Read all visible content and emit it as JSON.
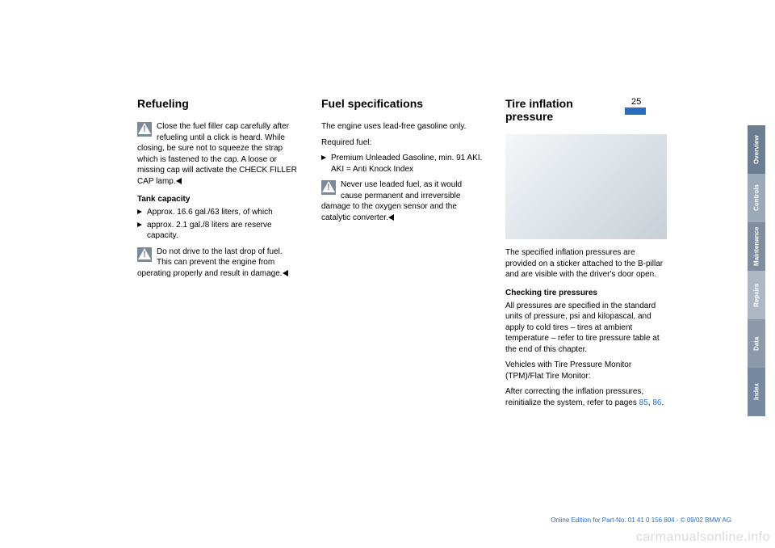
{
  "page_number": "25",
  "col1": {
    "title": "Refueling",
    "warn1": "Close the fuel filler cap carefully after refueling until a click is heard. While closing, be sure not to squeeze the strap which is fastened to the cap. A loose or missing cap will activate the CHECK FILLER CAP lamp.",
    "h3_1": "Tank capacity",
    "li1": "Approx. 16.6 gal./63 liters, of which",
    "li2": "approx. 2.1 gal./8 liters are reserve capacity.",
    "warn2": "Do not drive to the last drop of fuel. This can prevent the engine from operating properly and result in damage."
  },
  "col2": {
    "title": "Fuel specifications",
    "p1": "The engine uses lead-free gasoline only.",
    "p2": "Required fuel:",
    "li1": "Premium Unleaded Gasoline, min. 91 AKI. AKI = Anti Knock Index",
    "warn1": "Never use leaded fuel, as it would cause permanent and irreversible damage to the oxygen sensor and the catalytic converter."
  },
  "col3": {
    "title": "Tire inflation pressure",
    "p1": "The specified inflation pressures are provided on a sticker attached to the B-pillar and are visible with the driver's door open.",
    "h3_1": "Checking tire pressures",
    "p2": "All pressures are specified in the standard units of pressure, psi and kilopascal, and apply to cold tires – tires at ambient temperature – refer to tire pressure table at the end of this chapter.",
    "p3": "Vehicles with Tire Pressure Monitor (TPM)/Flat Tire Monitor:",
    "p4_a": "After correcting the inflation pressures, reinitialize the system, refer to pages ",
    "ref1": "85",
    "ref_sep": ", ",
    "ref2": "86",
    "p4_b": "."
  },
  "tabs": [
    {
      "label": "Overview",
      "color": "#6b7d90"
    },
    {
      "label": "Controls",
      "color": "#9ca9b8"
    },
    {
      "label": "Maintenance",
      "color": "#7e8da0"
    },
    {
      "label": "Repairs",
      "color": "#aeb8c5"
    },
    {
      "label": "Data",
      "color": "#8b99ab"
    },
    {
      "label": "Index",
      "color": "#7689a0"
    }
  ],
  "footer": "Online Edition for Part-No. 01 41 0 156 804 - © 09/02 BMW AG",
  "watermark": "carmanualsonline.info"
}
